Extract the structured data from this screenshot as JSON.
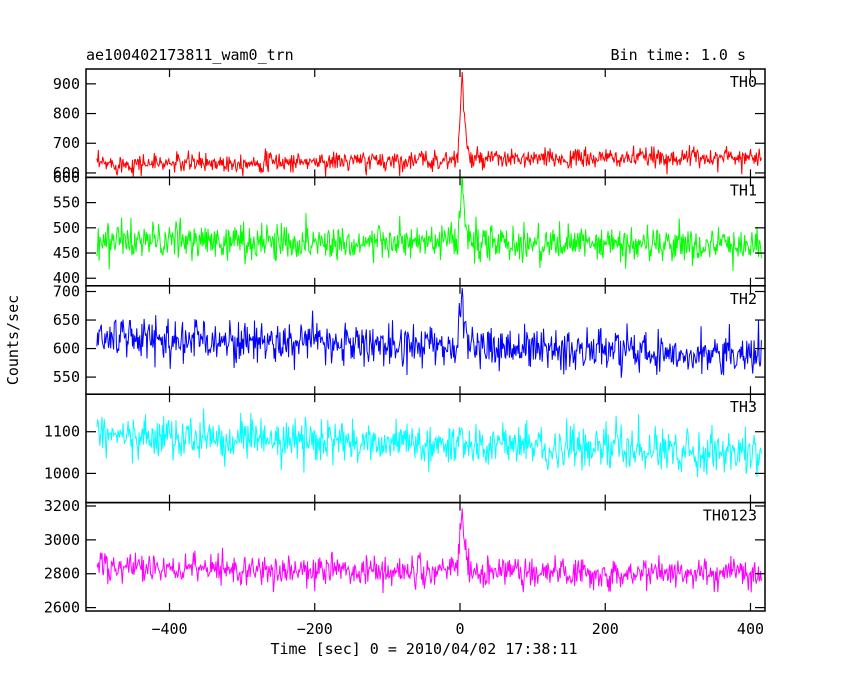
{
  "header": {
    "title": "ae100402173811_wam0_trn",
    "bin_time": "Bin time: 1.0 s"
  },
  "axes": {
    "xlabel": "Time [sec] 0 = 2010/04/02 17:38:11",
    "ylabel": "Counts/sec"
  },
  "chart_data": {
    "type": "line",
    "xlim": [
      -515,
      420
    ],
    "x_range": [
      -500,
      415
    ],
    "burst_time": 0,
    "xticks": [
      -400,
      -200,
      0,
      200,
      400
    ],
    "panels": [
      {
        "name": "TH0",
        "color": "#ff0000",
        "ylim": [
          585,
          950
        ],
        "yticks": [
          600,
          700,
          800,
          900
        ],
        "ytick_labels": [
          "600",
          "700",
          "800",
          "900"
        ],
        "baseline_start": 630,
        "baseline_end": 655,
        "noise": 28,
        "burst_peak": 950
      },
      {
        "name": "TH1",
        "color": "#00ff00",
        "ylim": [
          385,
          600
        ],
        "yticks": [
          400,
          450,
          500,
          550,
          600
        ],
        "ytick_labels": [
          "400",
          "450",
          "500",
          "550",
          "600"
        ],
        "baseline_start": 475,
        "baseline_end": 465,
        "noise": 30,
        "burst_peak": 600
      },
      {
        "name": "TH2",
        "color": "#0000ff",
        "ylim": [
          520,
          710
        ],
        "yticks": [
          550,
          600,
          650,
          700
        ],
        "ytick_labels": [
          "550",
          "600",
          "650",
          "700"
        ],
        "baseline_start": 620,
        "baseline_end": 590,
        "noise": 30,
        "burst_peak": 700
      },
      {
        "name": "TH3",
        "color": "#00ffff",
        "ylim": [
          930,
          1190
        ],
        "yticks": [
          1000,
          1100
        ],
        "ytick_labels": [
          "1000",
          "1100"
        ],
        "baseline_start": 1090,
        "baseline_end": 1050,
        "noise": 40,
        "burst_peak": 1100
      },
      {
        "name": "TH0123",
        "color": "#ff00ff",
        "ylim": [
          2580,
          3220
        ],
        "yticks": [
          2600,
          2800,
          3000,
          3200
        ],
        "ytick_labels": [
          "2600",
          "2800",
          "3000",
          "3200"
        ],
        "baseline_start": 2830,
        "baseline_end": 2800,
        "noise": 75,
        "burst_peak": 3220
      }
    ]
  }
}
